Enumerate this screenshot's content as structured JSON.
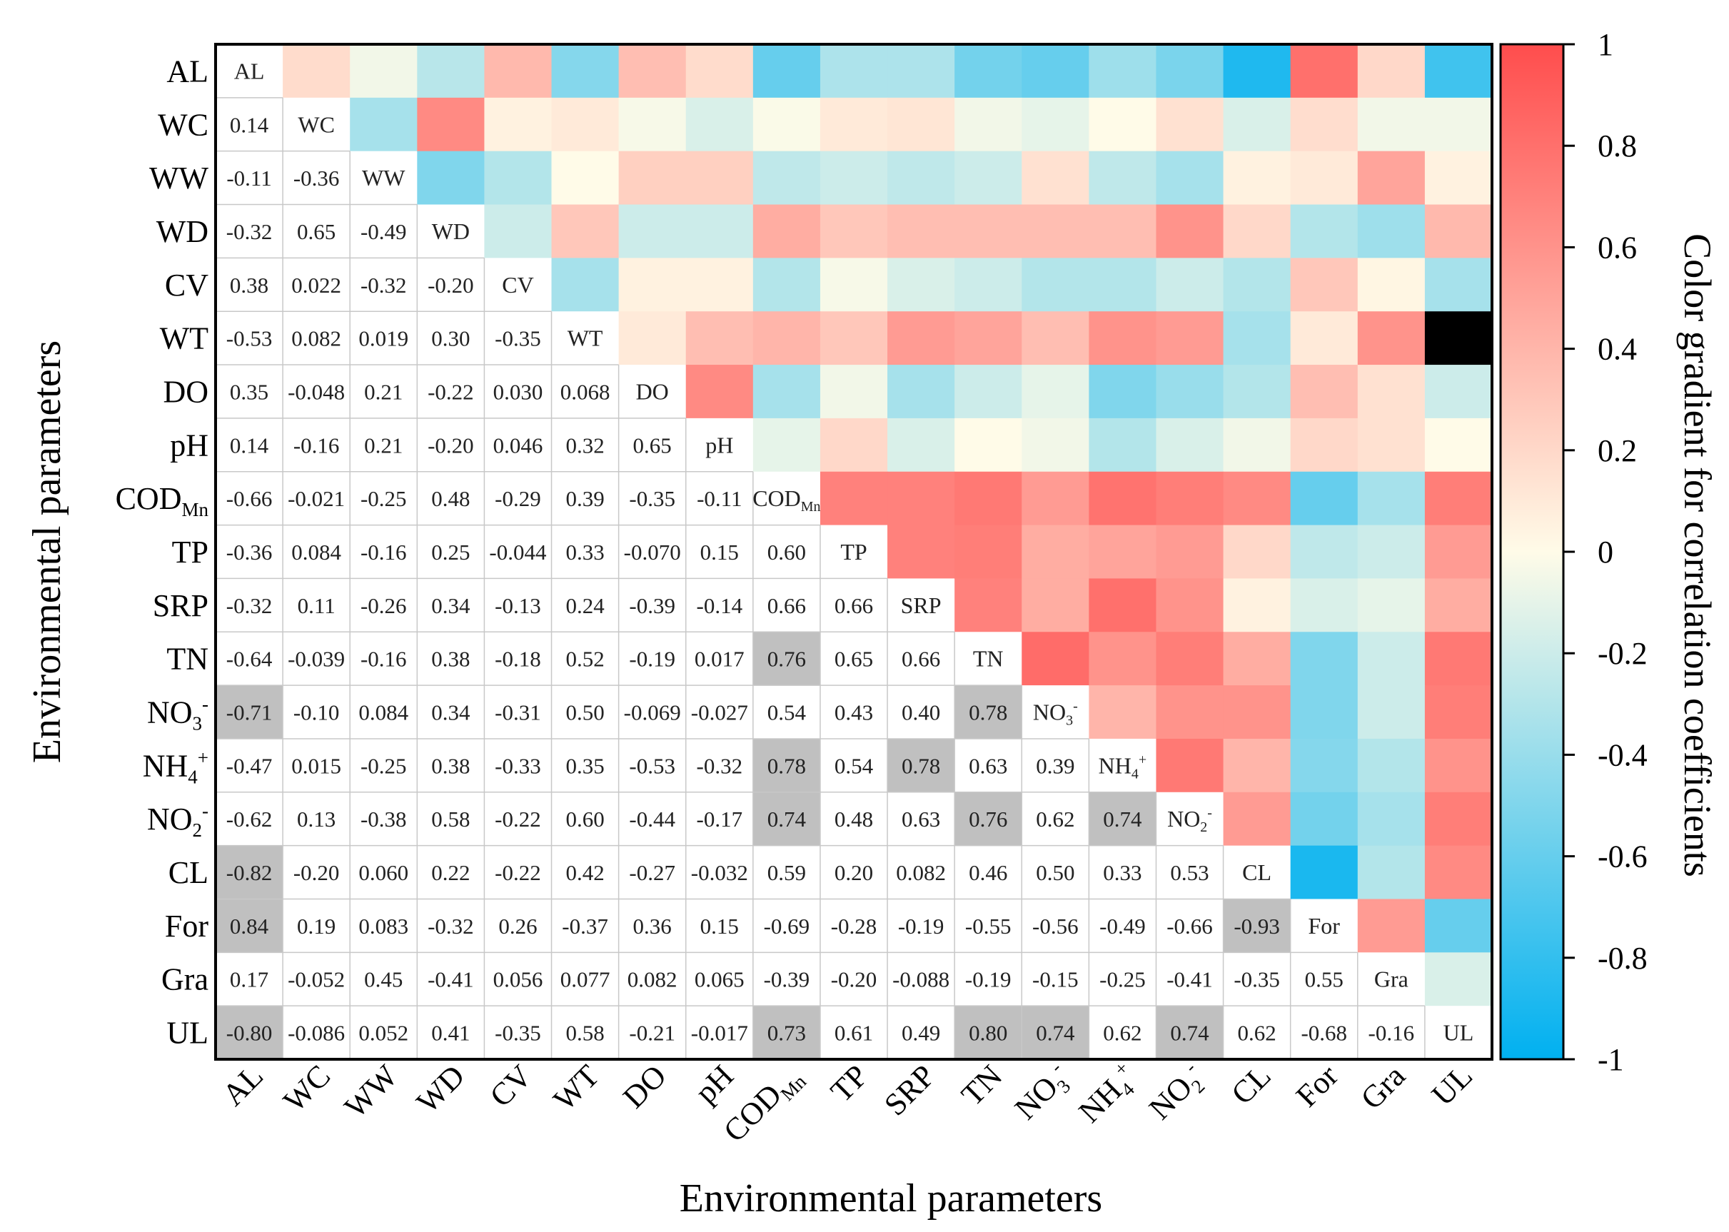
{
  "chart_data": {
    "type": "heatmap",
    "title": "",
    "xlabel": "Environmental parameters",
    "ylabel": "Environmental parameters",
    "colorbar_label": "Color gradient for correlation coefficients",
    "colorbar_ticks": [
      "1",
      "0.8",
      "0.6",
      "0.4",
      "0.2",
      "0",
      "-0.2",
      "-0.4",
      "-0.6",
      "-0.8",
      "-1"
    ],
    "colorbar_range": [
      -1,
      1
    ],
    "colors": {
      "positive": "#ff4d4d",
      "neutral": "#fffbe8",
      "negative": "#00b0f0",
      "highlight": "#c0c0c0"
    },
    "variables": [
      {
        "id": "AL",
        "base": "AL",
        "sub": "",
        "sup": ""
      },
      {
        "id": "WC",
        "base": "WC",
        "sub": "",
        "sup": ""
      },
      {
        "id": "WW",
        "base": "WW",
        "sub": "",
        "sup": ""
      },
      {
        "id": "WD",
        "base": "WD",
        "sub": "",
        "sup": ""
      },
      {
        "id": "CV",
        "base": "CV",
        "sub": "",
        "sup": ""
      },
      {
        "id": "WT",
        "base": "WT",
        "sub": "",
        "sup": ""
      },
      {
        "id": "DO",
        "base": "DO",
        "sub": "",
        "sup": ""
      },
      {
        "id": "pH",
        "base": "pH",
        "sub": "",
        "sup": ""
      },
      {
        "id": "CODMn",
        "base": "COD",
        "sub": "Mn",
        "sup": ""
      },
      {
        "id": "TP",
        "base": "TP",
        "sub": "",
        "sup": ""
      },
      {
        "id": "SRP",
        "base": "SRP",
        "sub": "",
        "sup": ""
      },
      {
        "id": "TN",
        "base": "TN",
        "sub": "",
        "sup": ""
      },
      {
        "id": "NO3",
        "base": "NO",
        "sub": "3",
        "sup": "-"
      },
      {
        "id": "NH4",
        "base": "NH",
        "sub": "4",
        "sup": "+"
      },
      {
        "id": "NO2",
        "base": "NO",
        "sub": "2",
        "sup": "-"
      },
      {
        "id": "CL",
        "base": "CL",
        "sub": "",
        "sup": ""
      },
      {
        "id": "For",
        "base": "For",
        "sub": "",
        "sup": ""
      },
      {
        "id": "Gra",
        "base": "Gra",
        "sub": "",
        "sup": ""
      },
      {
        "id": "UL",
        "base": "UL",
        "sub": "",
        "sup": ""
      }
    ],
    "lower_labels": [
      [],
      [
        "0.14"
      ],
      [
        "-0.11",
        "-0.36"
      ],
      [
        "-0.32",
        "0.65",
        "-0.49"
      ],
      [
        "0.38",
        "0.022",
        "-0.32",
        "-0.20"
      ],
      [
        "-0.53",
        "0.082",
        "0.019",
        "0.30",
        "-0.35"
      ],
      [
        "0.35",
        "-0.048",
        "0.21",
        "-0.22",
        "0.030",
        "0.068"
      ],
      [
        "0.14",
        "-0.16",
        "0.21",
        "-0.20",
        "0.046",
        "0.32",
        "0.65"
      ],
      [
        "-0.66",
        "-0.021",
        "-0.25",
        "0.48",
        "-0.29",
        "0.39",
        "-0.35",
        "-0.11"
      ],
      [
        "-0.36",
        "0.084",
        "-0.16",
        "0.25",
        "-0.044",
        "0.33",
        "-0.070",
        "0.15",
        "0.60"
      ],
      [
        "-0.32",
        "0.11",
        "-0.26",
        "0.34",
        "-0.13",
        "0.24",
        "-0.39",
        "-0.14",
        "0.66",
        "0.66"
      ],
      [
        "-0.64",
        "-0.039",
        "-0.16",
        "0.38",
        "-0.18",
        "0.52",
        "-0.19",
        "0.017",
        "0.76",
        "0.65",
        "0.66"
      ],
      [
        "-0.71",
        "-0.10",
        "0.084",
        "0.34",
        "-0.31",
        "0.50",
        "-0.069",
        "-0.027",
        "0.54",
        "0.43",
        "0.40",
        "0.78"
      ],
      [
        "-0.47",
        "0.015",
        "-0.25",
        "0.38",
        "-0.33",
        "0.35",
        "-0.53",
        "-0.32",
        "0.78",
        "0.54",
        "0.78",
        "0.63",
        "0.39"
      ],
      [
        "-0.62",
        "0.13",
        "-0.38",
        "0.58",
        "-0.22",
        "0.60",
        "-0.44",
        "-0.17",
        "0.74",
        "0.48",
        "0.63",
        "0.76",
        "0.62",
        "0.74"
      ],
      [
        "-0.82",
        "-0.20",
        "0.060",
        "0.22",
        "-0.22",
        "0.42",
        "-0.27",
        "-0.032",
        "0.59",
        "0.20",
        "0.082",
        "0.46",
        "0.50",
        "0.33",
        "0.53"
      ],
      [
        "0.84",
        "0.19",
        "0.083",
        "-0.32",
        "0.26",
        "-0.37",
        "0.36",
        "0.15",
        "-0.69",
        "-0.28",
        "-0.19",
        "-0.55",
        "-0.56",
        "-0.49",
        "-0.66",
        "-0.93"
      ],
      [
        "0.17",
        "-0.052",
        "0.45",
        "-0.41",
        "0.056",
        "0.077",
        "0.082",
        "0.065",
        "-0.39",
        "-0.20",
        "-0.088",
        "-0.19",
        "-0.15",
        "-0.25",
        "-0.41",
        "-0.35",
        "0.55"
      ],
      [
        "-0.80",
        "-0.086",
        "0.052",
        "0.41",
        "-0.35",
        "0.58",
        "-0.21",
        "-0.017",
        "0.73",
        "0.61",
        "0.49",
        "0.80",
        "0.74",
        "0.62",
        "0.74",
        "0.62",
        "-0.68",
        "-0.16"
      ]
    ],
    "upper_values": [
      [
        0.18,
        -0.05,
        -0.28,
        0.38,
        -0.48,
        0.35,
        0.18,
        -0.6,
        -0.32,
        -0.32,
        -0.55,
        -0.6,
        -0.38,
        -0.52,
        -0.88,
        0.8,
        0.2,
        -0.75
      ],
      [
        -0.35,
        0.65,
        0.05,
        0.1,
        -0.03,
        -0.15,
        -0.02,
        0.1,
        0.12,
        -0.05,
        -0.1,
        0.0,
        0.15,
        -0.15,
        0.17,
        -0.05,
        -0.05
      ],
      [
        -0.5,
        -0.3,
        0.0,
        0.25,
        0.25,
        -0.25,
        -0.2,
        -0.25,
        -0.2,
        0.15,
        -0.25,
        -0.35,
        0.05,
        0.1,
        0.5,
        0.05
      ],
      [
        -0.2,
        0.3,
        -0.2,
        -0.2,
        0.45,
        0.3,
        0.35,
        0.35,
        0.35,
        0.35,
        0.6,
        0.2,
        -0.3,
        -0.38,
        0.38
      ],
      [
        -0.35,
        0.05,
        0.05,
        -0.3,
        -0.03,
        -0.15,
        -0.2,
        -0.3,
        -0.3,
        -0.2,
        -0.3,
        0.3,
        0.03,
        -0.35
      ],
      [
        0.1,
        0.35,
        0.4,
        0.3,
        0.55,
        0.5,
        0.35,
        0.6,
        0.55,
        -0.35,
        0.1,
        0.6
      ],
      [
        0.65,
        -0.35,
        -0.05,
        -0.35,
        -0.2,
        -0.1,
        -0.5,
        -0.4,
        -0.3,
        0.35,
        0.15,
        -0.2
      ],
      [
        -0.1,
        0.2,
        -0.15,
        0.0,
        -0.05,
        -0.3,
        -0.15,
        -0.05,
        0.2,
        0.15,
        0.0
      ],
      [
        0.7,
        0.7,
        0.75,
        0.55,
        0.78,
        0.72,
        0.65,
        -0.6,
        -0.35,
        0.72
      ],
      [
        0.7,
        0.72,
        0.45,
        0.5,
        0.55,
        0.2,
        -0.25,
        -0.2,
        0.55
      ],
      [
        0.7,
        0.45,
        0.8,
        0.6,
        0.05,
        -0.15,
        -0.1,
        0.45
      ],
      [
        0.82,
        0.6,
        0.72,
        0.45,
        -0.5,
        -0.2,
        0.75
      ],
      [
        0.4,
        0.6,
        0.6,
        -0.5,
        -0.2,
        0.72
      ],
      [
        0.75,
        0.4,
        -0.48,
        -0.3,
        0.6
      ],
      [
        0.55,
        -0.55,
        -0.35,
        0.72
      ],
      [
        -0.9,
        -0.3,
        0.65
      ],
      [
        0.55,
        -0.6
      ],
      [
        -0.15
      ]
    ]
  }
}
